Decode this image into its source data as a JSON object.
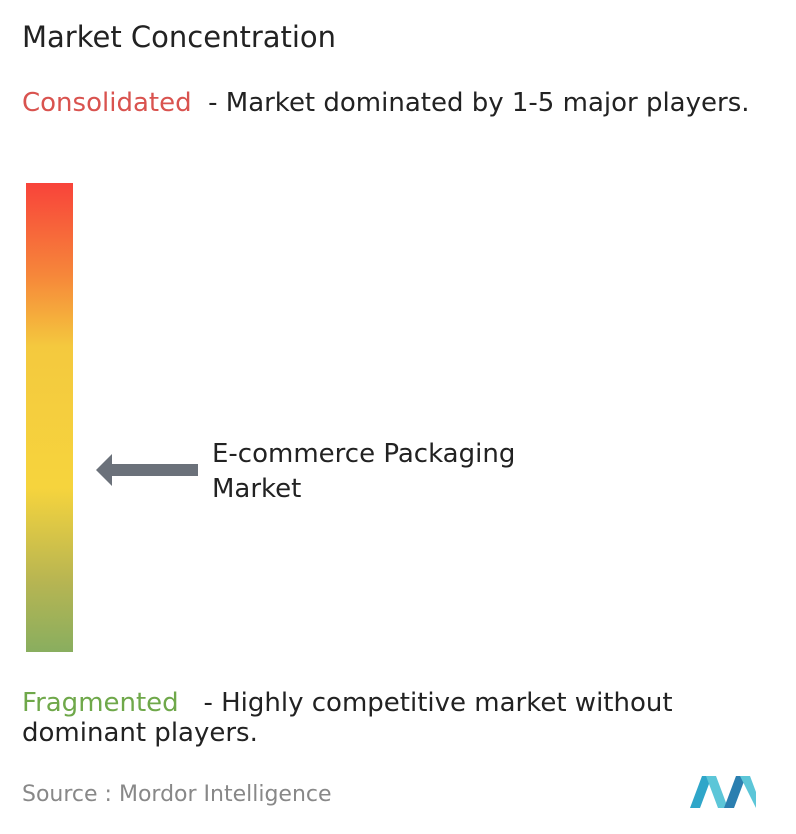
{
  "title": "Market Concentration",
  "consolidated": {
    "label": "Consolidated",
    "description": "- Market dominated by 1-5 major players."
  },
  "market": {
    "label": "E-commerce Packaging Market"
  },
  "fragmented": {
    "label": "Fragmented",
    "description": "- Highly competitive market without dominant players."
  },
  "source": {
    "label": "Source :",
    "name": "Mordor Intelligence"
  }
}
